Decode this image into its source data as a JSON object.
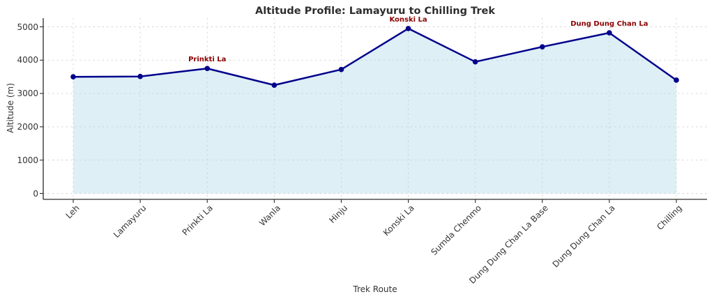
{
  "chart_data": {
    "type": "area",
    "title": "Altitude Profile: Lamayuru to Chilling Trek",
    "xlabel": "Trek Route",
    "ylabel": "Altitude (m)",
    "categories": [
      "Leh",
      "Lamayuru",
      "Prinkti La",
      "Wanla",
      "Hinju",
      "Konski La",
      "Sumda Chenmo",
      "Dung Dung Chan La Base",
      "Dung Dung Chan La",
      "Chilling"
    ],
    "values": [
      3500,
      3510,
      3750,
      3250,
      3720,
      4950,
      3950,
      4400,
      4820,
      3400
    ],
    "ylim": [
      0,
      5000
    ],
    "yticks": [
      0,
      1000,
      2000,
      3000,
      4000,
      5000
    ],
    "grid": true,
    "legend_position": "none",
    "line_color": "#00008b",
    "marker_color": "#00008b",
    "fill_color": "#add8e6",
    "fill_opacity": 0.4,
    "annotation_color": "#8b0000",
    "annotations": [
      {
        "label": "Prinkti La",
        "index": 2
      },
      {
        "label": "Konski La",
        "index": 5
      },
      {
        "label": "Dung Dung Chan La",
        "index": 8
      }
    ]
  }
}
